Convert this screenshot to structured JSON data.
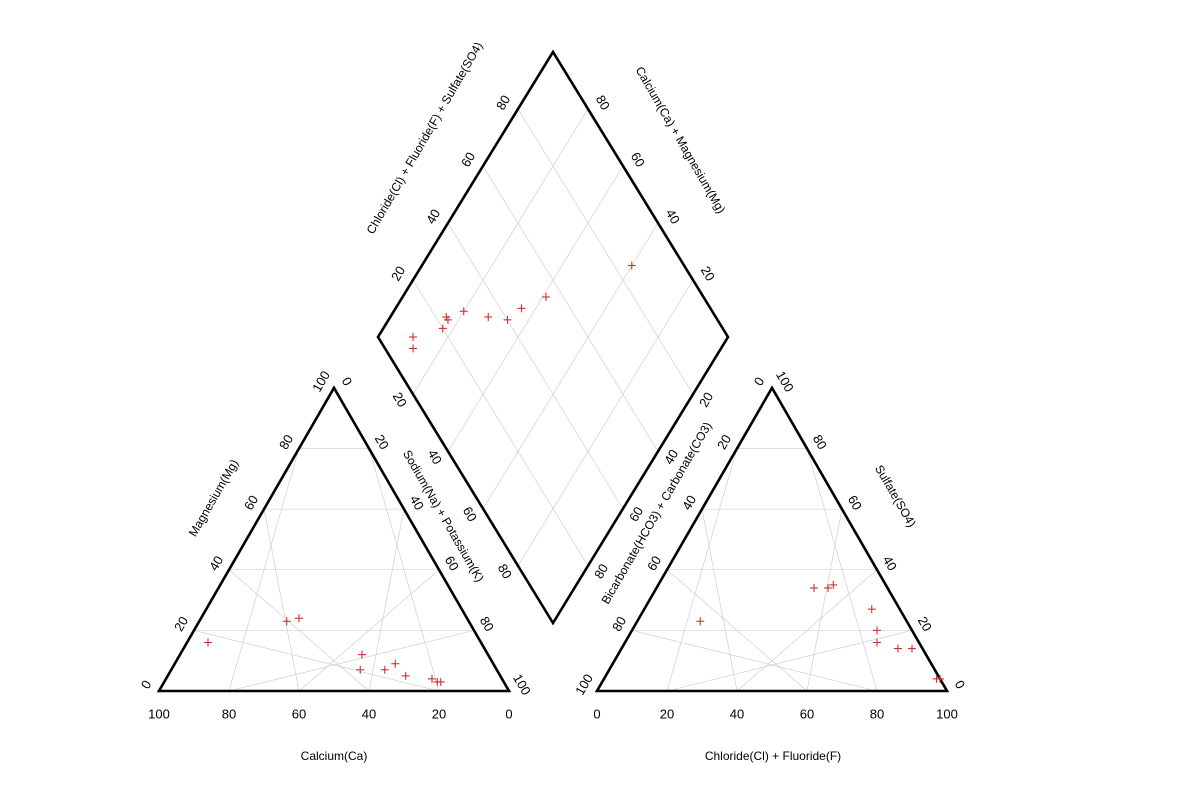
{
  "chart_data": {
    "type": "scatter",
    "subtype": "piper-diagram",
    "colors": {
      "frame": "#000000",
      "grid": "#c8c8c8",
      "points": "#d03030"
    },
    "marker": "plus",
    "grid": true,
    "ticks": {
      "triangle_bottom": [
        "100",
        "80",
        "60",
        "40",
        "20",
        "0"
      ],
      "triangle_side": [
        "0",
        "20",
        "40",
        "60",
        "80",
        "100"
      ],
      "diamond": [
        "20",
        "40",
        "60",
        "80"
      ]
    },
    "cation_triangle": {
      "xlabel": "Calcium(Ca)",
      "left_label": "Magnesium(Mg)",
      "right_label": "Sodium(Na) + Potassium(K)",
      "xlim": [
        100,
        0
      ],
      "points": [
        {
          "Mg": 16,
          "NaK": 6
        },
        {
          "Mg": 23,
          "NaK": 25
        },
        {
          "Mg": 24,
          "NaK": 28
        },
        {
          "Mg": 12,
          "NaK": 52
        },
        {
          "Mg": 7,
          "NaK": 54
        },
        {
          "Mg": 7,
          "NaK": 61
        },
        {
          "Mg": 9,
          "NaK": 63
        },
        {
          "Mg": 5,
          "NaK": 68
        },
        {
          "Mg": 4,
          "NaK": 76
        },
        {
          "Mg": 3,
          "NaK": 78
        },
        {
          "Mg": 3,
          "NaK": 79
        }
      ]
    },
    "anion_triangle": {
      "xlabel": "Chloride(Cl) + Fluoride(F)",
      "left_label": "Bicarbonate(HCO3) + Carbonate(CO3)",
      "right_label": "Sulfate(SO4)",
      "xlim": [
        0,
        100
      ],
      "points": [
        {
          "ClF": 18,
          "SO4": 23
        },
        {
          "ClF": 45,
          "SO4": 34
        },
        {
          "ClF": 49,
          "SO4": 34
        },
        {
          "ClF": 50,
          "SO4": 35
        },
        {
          "ClF": 65,
          "SO4": 27
        },
        {
          "ClF": 70,
          "SO4": 20
        },
        {
          "ClF": 72,
          "SO4": 16
        },
        {
          "ClF": 79,
          "SO4": 14
        },
        {
          "ClF": 83,
          "SO4": 14
        },
        {
          "ClF": 95,
          "SO4": 4
        },
        {
          "ClF": 96,
          "SO4": 4
        }
      ]
    },
    "diamond": {
      "left_label": "Chloride(Cl) + Fluoride(F) + Sulfate(SO4)",
      "right_label": "Calcium(Ca) + Magnesium(Mg)",
      "points": [
        {
          "ClFSO4": 88,
          "CaMg": 8
        },
        {
          "ClFSO4": 90,
          "CaMg": 10
        },
        {
          "ClFSO4": 40,
          "CaMg": 85
        },
        {
          "ClFSO4": 59,
          "CaMg": 55
        },
        {
          "ClFSO4": 64,
          "CaMg": 46
        },
        {
          "ClFSO4": 66,
          "CaMg": 40
        },
        {
          "ClFSO4": 72,
          "CaMg": 35
        },
        {
          "ClFSO4": 80,
          "CaMg": 29
        },
        {
          "ClFSO4": 83,
          "CaMg": 20
        },
        {
          "ClFSO4": 83,
          "CaMg": 23
        },
        {
          "ClFSO4": 84,
          "CaMg": 23
        }
      ]
    }
  }
}
